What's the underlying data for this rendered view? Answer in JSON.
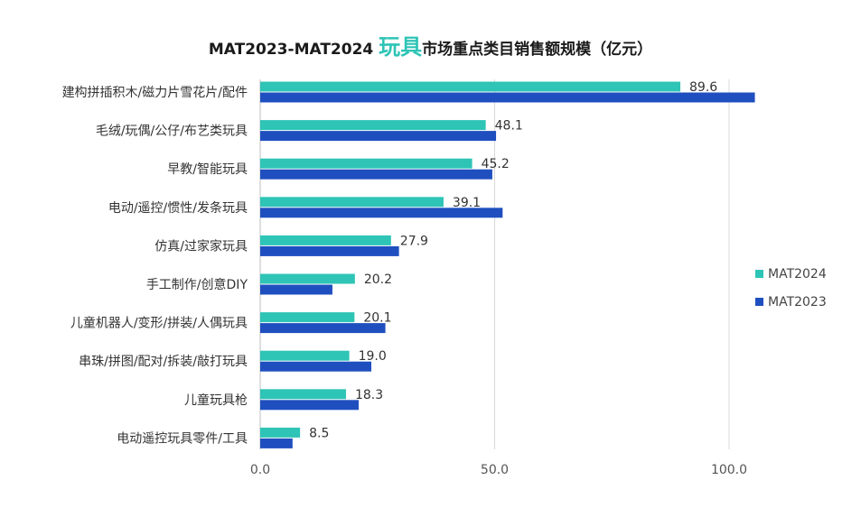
{
  "title": {
    "prefix": "MAT2023-MAT2024 ",
    "highlight": "玩具",
    "suffix": "市场重点类目销售额规模（亿元）"
  },
  "colors": {
    "MAT2024": "#2ec4b6",
    "MAT2023": "#1f4fbf",
    "grid": "#d9d9d9",
    "axis": "#bfbfbf"
  },
  "chart_data": {
    "type": "bar",
    "orientation": "horizontal",
    "categories": [
      "建构拼插积木/磁力片雪花片/配件",
      "毛绒/玩偶/公仔/布艺类玩具",
      "早教/智能玩具",
      "电动/遥控/惯性/发条玩具",
      "仿真/过家家玩具",
      "手工制作/创意DIY",
      "儿童机器人/变形/拼装/人偶玩具",
      "串珠/拼图/配对/拆装/敲打玩具",
      "儿童玩具枪",
      "电动遥控玩具零件/工具"
    ],
    "series": [
      {
        "name": "MAT2024",
        "values": [
          89.6,
          48.1,
          45.2,
          39.1,
          27.9,
          20.2,
          20.1,
          19.0,
          18.3,
          8.5
        ],
        "data_labels": [
          "89.6",
          "48.1",
          "45.2",
          "39.1",
          "27.9",
          "20.2",
          "20.1",
          "19.0",
          "18.3",
          "8.5"
        ]
      },
      {
        "name": "MAT2023",
        "values": [
          105.5,
          50.3,
          49.5,
          51.7,
          29.6,
          15.4,
          26.7,
          23.7,
          21.0,
          6.9
        ]
      }
    ],
    "xlim": [
      0,
      120
    ],
    "xticks": [
      0,
      50,
      100
    ],
    "xtick_labels": [
      "0.0",
      "50.0",
      "100.0"
    ],
    "grid": true,
    "legend_position": "right"
  }
}
